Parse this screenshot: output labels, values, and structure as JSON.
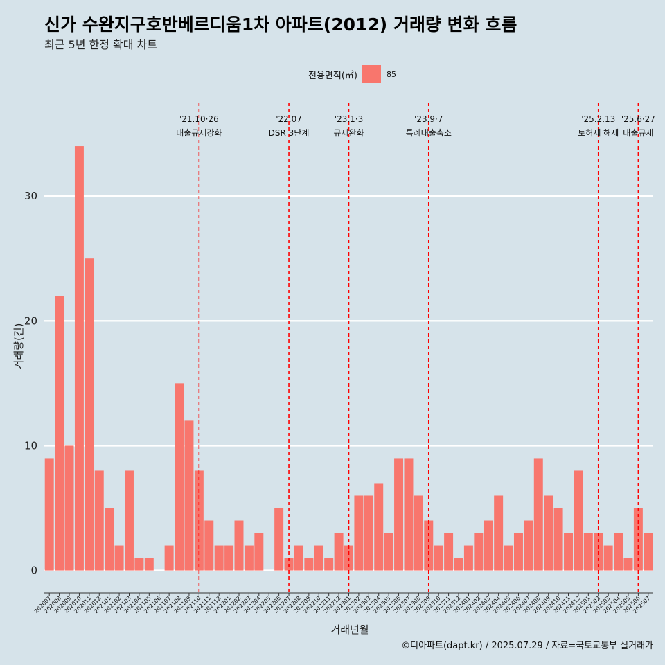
{
  "title": "신가 수완지구호반베르디움1차 아파트(2012) 거래량 변화 흐름",
  "subtitle": "최근 5년 한정 확대 차트",
  "caption": "©디아파트(dapt.kr) / 2025.07.29 / 자료=국토교통부 실거래가",
  "colors": {
    "bar": "#f8766d",
    "event": "#ff0000",
    "background": "#d6e3ea",
    "grid": "#ffffff"
  },
  "chart_data": {
    "type": "bar",
    "xlabel": "거래년월",
    "ylabel": "거래량(건)",
    "ylim": [
      -1.8,
      37.5
    ],
    "yticks": [
      0,
      10,
      20,
      30
    ],
    "grid": true,
    "legend": {
      "title": "전용면적(㎡)",
      "position": "top",
      "entries": [
        "85"
      ]
    },
    "categories": [
      "202007",
      "202008",
      "202009",
      "202010",
      "202011",
      "202012",
      "202101",
      "202102",
      "202103",
      "202104",
      "202105",
      "202106",
      "202107",
      "202108",
      "202109",
      "202110",
      "202111",
      "202112",
      "202201",
      "202202",
      "202203",
      "202204",
      "202205",
      "202206",
      "202207",
      "202208",
      "202209",
      "202210",
      "202211",
      "202212",
      "202301",
      "202302",
      "202303",
      "202304",
      "202305",
      "202306",
      "202307",
      "202308",
      "202309",
      "202310",
      "202311",
      "202312",
      "202401",
      "202402",
      "202403",
      "202404",
      "202405",
      "202406",
      "202407",
      "202408",
      "202409",
      "202410",
      "202411",
      "202412",
      "202501",
      "202502",
      "202503",
      "202504",
      "202505",
      "202506",
      "202507"
    ],
    "series": [
      {
        "name": "85",
        "values": [
          9,
          22,
          10,
          34,
          25,
          8,
          5,
          2,
          8,
          1,
          1,
          0,
          2,
          15,
          12,
          8,
          4,
          2,
          2,
          4,
          2,
          3,
          0,
          5,
          1,
          2,
          1,
          2,
          1,
          3,
          2,
          6,
          6,
          7,
          3,
          9,
          9,
          6,
          4,
          2,
          3,
          1,
          2,
          3,
          4,
          6,
          2,
          3,
          4,
          9,
          6,
          5,
          3,
          8,
          3,
          3,
          2,
          3,
          1,
          5,
          3
        ]
      }
    ],
    "annotations": [
      {
        "category": "202110",
        "line1": "'21.10·26",
        "line2": "대출규제강화"
      },
      {
        "category": "202207",
        "line1": "'22.07",
        "line2": "DSR 3단계"
      },
      {
        "category": "202301",
        "line1": "'23.1·3",
        "line2": "규제완화"
      },
      {
        "category": "202309",
        "line1": "'23.9·7",
        "line2": "특례대출축소"
      },
      {
        "category": "202502",
        "line1": "'25.2.13",
        "line2": "토허제 해제"
      },
      {
        "category": "202506",
        "line1": "'25.6·27",
        "line2": "대출규제"
      }
    ]
  }
}
